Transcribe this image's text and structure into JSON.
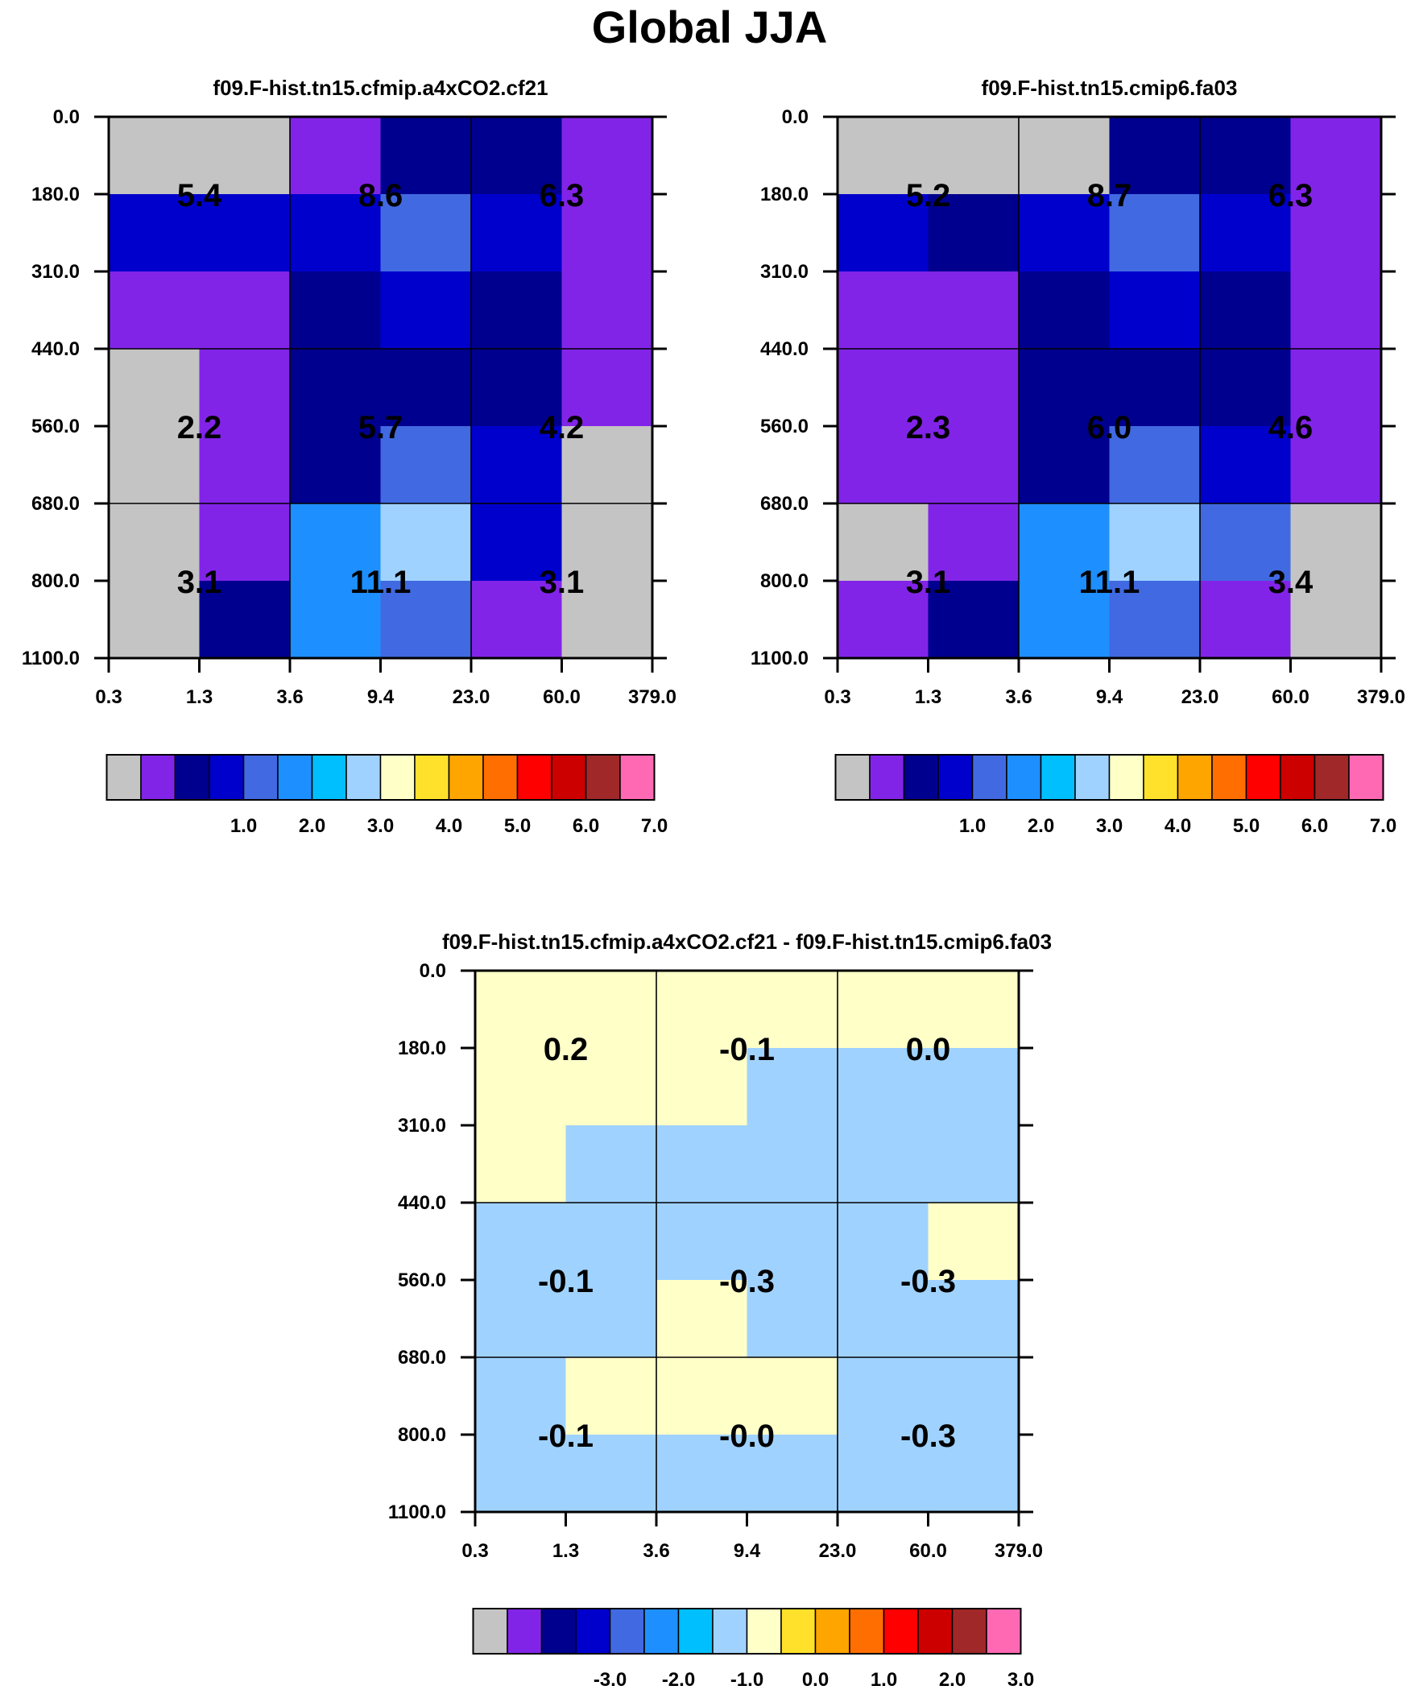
{
  "title": "Global JJA",
  "colors": {
    "palette": [
      "#c4c4c4",
      "#8224e8",
      "#00008f",
      "#0000cd",
      "#4169e1",
      "#1e8fff",
      "#00bfff",
      "#a0d2ff",
      "#ffffc8",
      "#ffe12b",
      "#ffa500",
      "#ff6e00",
      "#ff0000",
      "#cd0000",
      "#a02828",
      "#ff69b4"
    ],
    "grid": "#000000"
  },
  "chart_data": [
    {
      "type": "heatmap",
      "name": "panel-a",
      "title": "f09.F-hist.tn15.cfmip.a4xCO2.cf21",
      "y_tick_labels": [
        "0.0",
        "180.0",
        "310.0",
        "440.0",
        "560.0",
        "680.0",
        "800.0",
        "1100.0"
      ],
      "x_tick_labels": [
        "0.3",
        "1.3",
        "3.6",
        "9.4",
        "23.0",
        "60.0",
        "379.0"
      ],
      "color_index_grid": [
        [
          0,
          0,
          1,
          2,
          2,
          1
        ],
        [
          3,
          3,
          3,
          4,
          3,
          1
        ],
        [
          1,
          1,
          2,
          3,
          2,
          1
        ],
        [
          0,
          1,
          2,
          2,
          2,
          1
        ],
        [
          0,
          1,
          2,
          4,
          3,
          0
        ],
        [
          0,
          1,
          5,
          7,
          3,
          0
        ],
        [
          0,
          2,
          5,
          4,
          1,
          0
        ]
      ],
      "region_values": [
        [
          "5.4",
          "8.6",
          "6.3"
        ],
        [
          "2.2",
          "5.7",
          "4.2"
        ],
        [
          "3.1",
          "11.1",
          "3.1"
        ]
      ],
      "colorbar_labels": [
        "1.0",
        "2.0",
        "3.0",
        "4.0",
        "5.0",
        "6.0",
        "7.0"
      ]
    },
    {
      "type": "heatmap",
      "name": "panel-b",
      "title": "f09.F-hist.tn15.cmip6.fa03",
      "y_tick_labels": [
        "0.0",
        "180.0",
        "310.0",
        "440.0",
        "560.0",
        "680.0",
        "800.0",
        "1100.0"
      ],
      "x_tick_labels": [
        "0.3",
        "1.3",
        "3.6",
        "9.4",
        "23.0",
        "60.0",
        "379.0"
      ],
      "color_index_grid": [
        [
          0,
          0,
          0,
          2,
          2,
          1
        ],
        [
          3,
          2,
          3,
          4,
          3,
          1
        ],
        [
          1,
          1,
          2,
          3,
          2,
          1
        ],
        [
          1,
          1,
          2,
          2,
          2,
          1
        ],
        [
          1,
          1,
          2,
          4,
          3,
          1
        ],
        [
          0,
          1,
          5,
          7,
          4,
          0
        ],
        [
          1,
          2,
          5,
          4,
          1,
          0
        ]
      ],
      "region_values": [
        [
          "5.2",
          "8.7",
          "6.3"
        ],
        [
          "2.3",
          "6.0",
          "4.6"
        ],
        [
          "3.1",
          "11.1",
          "3.4"
        ]
      ],
      "colorbar_labels": [
        "1.0",
        "2.0",
        "3.0",
        "4.0",
        "5.0",
        "6.0",
        "7.0"
      ]
    },
    {
      "type": "heatmap",
      "name": "panel-diff",
      "title": "f09.F-hist.tn15.cfmip.a4xCO2.cf21 - f09.F-hist.tn15.cmip6.fa03",
      "y_tick_labels": [
        "0.0",
        "180.0",
        "310.0",
        "440.0",
        "560.0",
        "680.0",
        "800.0",
        "1100.0"
      ],
      "x_tick_labels": [
        "0.3",
        "1.3",
        "3.6",
        "9.4",
        "23.0",
        "60.0",
        "379.0"
      ],
      "color_index_grid": [
        [
          8,
          8,
          8,
          8,
          8,
          8
        ],
        [
          8,
          8,
          8,
          7,
          7,
          7
        ],
        [
          8,
          7,
          7,
          7,
          7,
          7
        ],
        [
          7,
          7,
          7,
          7,
          7,
          8
        ],
        [
          7,
          7,
          8,
          7,
          7,
          7
        ],
        [
          7,
          8,
          8,
          8,
          7,
          7
        ],
        [
          7,
          7,
          7,
          7,
          7,
          7
        ]
      ],
      "region_values": [
        [
          "0.2",
          "-0.1",
          "0.0"
        ],
        [
          "-0.1",
          "-0.3",
          "-0.3"
        ],
        [
          "-0.1",
          "-0.0",
          "-0.3"
        ]
      ],
      "colorbar_labels": [
        "-3.0",
        "-2.0",
        "-1.0",
        "0.0",
        "1.0",
        "2.0",
        "3.0"
      ]
    }
  ]
}
